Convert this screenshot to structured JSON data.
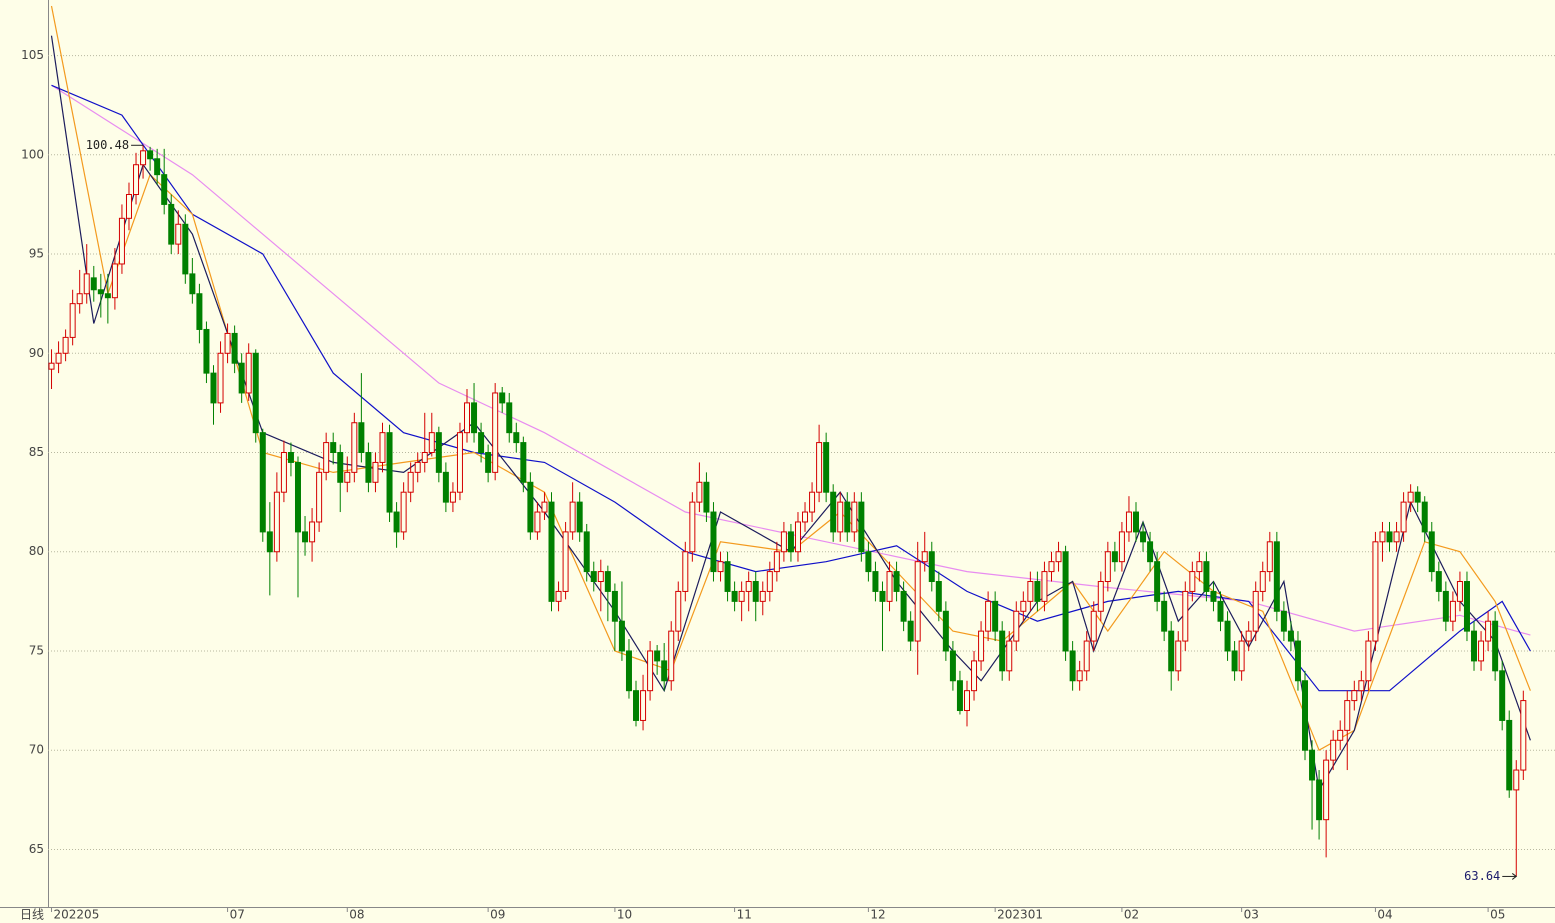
{
  "chart_data": {
    "type": "candlestick",
    "period_label": "日线",
    "up_color": "#d40000",
    "down_color": "#008000",
    "grid": true,
    "xlim": [
      -0.5,
      213.5
    ],
    "ylim": [
      62.1,
      107.8
    ],
    "yticks": [
      65,
      70,
      75,
      80,
      85,
      90,
      95,
      100,
      105
    ],
    "xticks": [
      {
        "value": 0,
        "label": "202205"
      },
      {
        "value": 25,
        "label": "07"
      },
      {
        "value": 42,
        "label": "08"
      },
      {
        "value": 62,
        "label": "09"
      },
      {
        "value": 80,
        "label": "10"
      },
      {
        "value": 97,
        "label": "11"
      },
      {
        "value": 116,
        "label": "12"
      },
      {
        "value": 134,
        "label": "202301"
      },
      {
        "value": 152,
        "label": "02"
      },
      {
        "value": 169,
        "label": "03"
      },
      {
        "value": 188,
        "label": "04"
      },
      {
        "value": 204,
        "label": "05"
      }
    ],
    "annotations": [
      {
        "text": 100.48,
        "index": 13
      },
      {
        "text": 63.64,
        "index": 208
      }
    ],
    "candles": [
      [
        89.2,
        90.2,
        88.2,
        89.5
      ],
      [
        89.5,
        90.6,
        89,
        90
      ],
      [
        90,
        91.2,
        89.6,
        90.8
      ],
      [
        90.8,
        93.2,
        90.4,
        92.5
      ],
      [
        92.5,
        94.2,
        92,
        93
      ],
      [
        93,
        95.5,
        92.5,
        94
      ],
      [
        93.8,
        94.4,
        92.6,
        93.2
      ],
      [
        93.2,
        94,
        91.8,
        93
      ],
      [
        93,
        94,
        91.5,
        92.8
      ],
      [
        92.8,
        95.3,
        92.2,
        94.5
      ],
      [
        94.5,
        97.5,
        94,
        96.8
      ],
      [
        96.8,
        98.6,
        96.2,
        98
      ],
      [
        98,
        100.1,
        97.5,
        99.5
      ],
      [
        99.5,
        100.48,
        98.8,
        100.2
      ],
      [
        100.2,
        100.4,
        99.2,
        99.8
      ],
      [
        99.8,
        100.3,
        98.5,
        99
      ],
      [
        99,
        100.3,
        97,
        97.5
      ],
      [
        97.5,
        98,
        95,
        95.5
      ],
      [
        95.5,
        97.2,
        95,
        96.5
      ],
      [
        96.5,
        97,
        93.5,
        94
      ],
      [
        94,
        94.8,
        92.5,
        93
      ],
      [
        93,
        93.5,
        90.5,
        91.2
      ],
      [
        91.2,
        91.6,
        88.5,
        89
      ],
      [
        89,
        89.4,
        86.4,
        87.5
      ],
      [
        87.5,
        90.6,
        87,
        90
      ],
      [
        90,
        91.5,
        89.5,
        91
      ],
      [
        91,
        91.4,
        89,
        89.5
      ],
      [
        89.5,
        90,
        87.5,
        88
      ],
      [
        88,
        90.5,
        87.6,
        90
      ],
      [
        90,
        90.2,
        85.5,
        86
      ],
      [
        86,
        86.2,
        80.5,
        81
      ],
      [
        81,
        82.5,
        77.8,
        80
      ],
      [
        80,
        84,
        79.5,
        83
      ],
      [
        83,
        85.6,
        82.5,
        85
      ],
      [
        85,
        85.5,
        83.8,
        84.5
      ],
      [
        84.5,
        84.8,
        77.7,
        81
      ],
      [
        81,
        81.8,
        79.8,
        80.5
      ],
      [
        80.5,
        82.2,
        79.5,
        81.5
      ],
      [
        81.5,
        84.5,
        81,
        84
      ],
      [
        84,
        86,
        83.6,
        85.5
      ],
      [
        85.5,
        86,
        84.4,
        85
      ],
      [
        85,
        85.4,
        82,
        83.5
      ],
      [
        83.5,
        84.8,
        83,
        84
      ],
      [
        84,
        87,
        83.5,
        86.5
      ],
      [
        86.5,
        89,
        84.5,
        85
      ],
      [
        85,
        85.5,
        83,
        83.5
      ],
      [
        83.5,
        85,
        83,
        84.5
      ],
      [
        84.5,
        86.5,
        84,
        86
      ],
      [
        86,
        86.4,
        81.5,
        82
      ],
      [
        82,
        82.5,
        80.2,
        81
      ],
      [
        81,
        83.5,
        80.6,
        83
      ],
      [
        83,
        84.5,
        82.5,
        84
      ],
      [
        84,
        85,
        83.5,
        84.5
      ],
      [
        84.5,
        87,
        84,
        85
      ],
      [
        85,
        87,
        84.8,
        86
      ],
      [
        86,
        86.3,
        83.5,
        84
      ],
      [
        84,
        84.5,
        82,
        82.5
      ],
      [
        82.5,
        83.5,
        82,
        83
      ],
      [
        83,
        86.5,
        82.6,
        86
      ],
      [
        86,
        88.2,
        85.5,
        87.5
      ],
      [
        87.5,
        88.5,
        85.5,
        86
      ],
      [
        86,
        86.5,
        84.5,
        85
      ],
      [
        85,
        85.4,
        83.5,
        84
      ],
      [
        84,
        88.5,
        83.6,
        88
      ],
      [
        88,
        88.3,
        87,
        87.5
      ],
      [
        87.5,
        88,
        85.5,
        86
      ],
      [
        86,
        86.5,
        85,
        85.5
      ],
      [
        85.5,
        85.8,
        83,
        83.5
      ],
      [
        83.5,
        84,
        80.6,
        81
      ],
      [
        81,
        82.5,
        80.6,
        82
      ],
      [
        82,
        83,
        81.6,
        82.5
      ],
      [
        82.5,
        83,
        77,
        77.5
      ],
      [
        77.5,
        78.5,
        77,
        78
      ],
      [
        78,
        81.5,
        77.6,
        81
      ],
      [
        81,
        83.5,
        80.6,
        82.5
      ],
      [
        82.5,
        83,
        80.5,
        81
      ],
      [
        81,
        81.4,
        78.5,
        79
      ],
      [
        79,
        79.5,
        78,
        78.5
      ],
      [
        78.5,
        79.6,
        77,
        79
      ],
      [
        79,
        79.3,
        76.5,
        78
      ],
      [
        78,
        78.4,
        75,
        76.5
      ],
      [
        76.5,
        78.5,
        74.5,
        75
      ],
      [
        75,
        75.6,
        72.6,
        73
      ],
      [
        73,
        73.5,
        71.2,
        71.5
      ],
      [
        71.5,
        73.8,
        71,
        73
      ],
      [
        73,
        75.5,
        72.5,
        75
      ],
      [
        75,
        75.3,
        73.8,
        74.5
      ],
      [
        74.5,
        75.4,
        73,
        73.5
      ],
      [
        73.5,
        76.5,
        73,
        76
      ],
      [
        76,
        78.5,
        75.5,
        78
      ],
      [
        78,
        80.5,
        77.5,
        80
      ],
      [
        80,
        83,
        79.5,
        82.5
      ],
      [
        82.5,
        84.5,
        82,
        83.5
      ],
      [
        83.5,
        84,
        81.5,
        82
      ],
      [
        82,
        82.5,
        78.5,
        79
      ],
      [
        79,
        80,
        78.5,
        79.5
      ],
      [
        79.5,
        80,
        77.5,
        78
      ],
      [
        78,
        78.5,
        77,
        77.5
      ],
      [
        77.5,
        78.5,
        76.5,
        78
      ],
      [
        78,
        79,
        77,
        78.5
      ],
      [
        78.5,
        79,
        76.5,
        77.5
      ],
      [
        77.5,
        78.5,
        76.8,
        78
      ],
      [
        78,
        79.5,
        77.5,
        79
      ],
      [
        79,
        80.5,
        78.5,
        80
      ],
      [
        80,
        81.5,
        79.5,
        81
      ],
      [
        81,
        81.4,
        79.5,
        80
      ],
      [
        80,
        82,
        79.5,
        81.5
      ],
      [
        81.5,
        82.5,
        81,
        82
      ],
      [
        82,
        83.5,
        81.5,
        83
      ],
      [
        83,
        86.4,
        82.5,
        85.5
      ],
      [
        85.5,
        86,
        82.5,
        83
      ],
      [
        83,
        83.4,
        80.5,
        81
      ],
      [
        81,
        83,
        80.5,
        82.5
      ],
      [
        82.5,
        83,
        80.5,
        81
      ],
      [
        81,
        83,
        80.5,
        82.5
      ],
      [
        82.5,
        83,
        79.5,
        80
      ],
      [
        80,
        80.5,
        78.5,
        79
      ],
      [
        79,
        79.5,
        77.5,
        78
      ],
      [
        78,
        78.5,
        75,
        77.5
      ],
      [
        77.5,
        79.5,
        77,
        79
      ],
      [
        79,
        79.5,
        77.5,
        78
      ],
      [
        78,
        78.5,
        76,
        76.5
      ],
      [
        76.5,
        77,
        75,
        75.5
      ],
      [
        75.5,
        80.5,
        73.8,
        79.5
      ],
      [
        79.5,
        81,
        79,
        80
      ],
      [
        80,
        80.5,
        78,
        78.5
      ],
      [
        78.5,
        79,
        76.5,
        77
      ],
      [
        77,
        77.5,
        74.5,
        75
      ],
      [
        75,
        75.5,
        73,
        73.5
      ],
      [
        73.5,
        74,
        71.8,
        72
      ],
      [
        72,
        73.5,
        71.2,
        73
      ],
      [
        73,
        75,
        72.5,
        74.5
      ],
      [
        74.5,
        76.5,
        74,
        76
      ],
      [
        76,
        78,
        75.5,
        77.5
      ],
      [
        77.5,
        78,
        75.5,
        76
      ],
      [
        76,
        76.5,
        73.5,
        74
      ],
      [
        74,
        76,
        73.5,
        75.5
      ],
      [
        75.5,
        77.5,
        75,
        77
      ],
      [
        77,
        78,
        76.5,
        77.5
      ],
      [
        77.5,
        79,
        77,
        78.5
      ],
      [
        78.5,
        79,
        77,
        77.5
      ],
      [
        77.5,
        79.5,
        77,
        79
      ],
      [
        79,
        80,
        78.5,
        79.5
      ],
      [
        79.5,
        80.5,
        79,
        80
      ],
      [
        80,
        80.3,
        74.5,
        75
      ],
      [
        75,
        75.5,
        73,
        73.5
      ],
      [
        73.5,
        74.5,
        73,
        74
      ],
      [
        74,
        76,
        73.5,
        75.5
      ],
      [
        75.5,
        77.5,
        75,
        77
      ],
      [
        77,
        79,
        76.5,
        78.5
      ],
      [
        78.5,
        80.5,
        78,
        80
      ],
      [
        80,
        80.5,
        79,
        79.5
      ],
      [
        79.5,
        81.5,
        79,
        81
      ],
      [
        81,
        82.8,
        80.5,
        82
      ],
      [
        82,
        82.5,
        80.5,
        81
      ],
      [
        81,
        81.5,
        80,
        80.5
      ],
      [
        80.5,
        81,
        79,
        79.5
      ],
      [
        79.5,
        80,
        77,
        77.5
      ],
      [
        77.5,
        78,
        75.5,
        76
      ],
      [
        76,
        76.5,
        73,
        74
      ],
      [
        74,
        76,
        73.5,
        75.5
      ],
      [
        75.5,
        78.5,
        75,
        78
      ],
      [
        78,
        79.5,
        77.5,
        79
      ],
      [
        79,
        80,
        78.5,
        79.5
      ],
      [
        79.5,
        80,
        77.5,
        78
      ],
      [
        78,
        78.5,
        77,
        77.5
      ],
      [
        77.5,
        78,
        76,
        76.5
      ],
      [
        76.5,
        77,
        74.5,
        75
      ],
      [
        75,
        75.5,
        73.5,
        74
      ],
      [
        74,
        76,
        73.5,
        75.5
      ],
      [
        75.5,
        76.5,
        75,
        76
      ],
      [
        76,
        78.5,
        75.5,
        78
      ],
      [
        78,
        79.5,
        77.5,
        79
      ],
      [
        79,
        81,
        78.5,
        80.5
      ],
      [
        80.5,
        81,
        76.5,
        77
      ],
      [
        77,
        77.5,
        75.5,
        76
      ],
      [
        76,
        76.5,
        75,
        75.5
      ],
      [
        75.5,
        76,
        73,
        73.5
      ],
      [
        73.5,
        74,
        69.5,
        70
      ],
      [
        70,
        70.5,
        66,
        68.5
      ],
      [
        68.5,
        69,
        65.5,
        66.5
      ],
      [
        66.5,
        70,
        64.6,
        69.5
      ],
      [
        69.5,
        71,
        69,
        70.5
      ],
      [
        70.5,
        71.5,
        70,
        71
      ],
      [
        71,
        73,
        69,
        72.5
      ],
      [
        72.5,
        73.5,
        72,
        73
      ],
      [
        73,
        74,
        72.5,
        73.5
      ],
      [
        73.5,
        76,
        73,
        75.5
      ],
      [
        75.5,
        81,
        75,
        80.5
      ],
      [
        80.5,
        81.5,
        79.5,
        81
      ],
      [
        81,
        81.5,
        80,
        80.5
      ],
      [
        80.5,
        81.5,
        80,
        81
      ],
      [
        81,
        83,
        80.5,
        82.5
      ],
      [
        82.5,
        83.4,
        82,
        83
      ],
      [
        83,
        83.3,
        82,
        82.5
      ],
      [
        82.5,
        82.8,
        80.5,
        81
      ],
      [
        81,
        81.5,
        78.5,
        79
      ],
      [
        79,
        79.5,
        77.5,
        78
      ],
      [
        78,
        78.5,
        76,
        76.5
      ],
      [
        76.5,
        78,
        76,
        77.5
      ],
      [
        77.5,
        79,
        77,
        78.5
      ],
      [
        78.5,
        79,
        75.5,
        76
      ],
      [
        76,
        76.5,
        74,
        74.5
      ],
      [
        74.5,
        76,
        74,
        75.5
      ],
      [
        75.5,
        77,
        75,
        76.5
      ],
      [
        76.5,
        77,
        73.5,
        74
      ],
      [
        74,
        74.5,
        71,
        71.5
      ],
      [
        71.5,
        72,
        67.6,
        68
      ],
      [
        68,
        69.5,
        63.64,
        69
      ],
      [
        69,
        73,
        68.5,
        72.5
      ]
    ],
    "ma_lines": [
      {
        "color": "#e88cf0",
        "x": [
          0,
          20,
          40,
          55,
          70,
          90,
          110,
          130,
          150,
          170,
          185,
          200,
          210
        ],
        "values": [
          103.5,
          99,
          93,
          88.5,
          86,
          82,
          80.5,
          79,
          78.2,
          77.5,
          76,
          76.8,
          75.8
        ]
      },
      {
        "color": "#1010c8",
        "x": [
          0,
          10,
          20,
          30,
          40,
          50,
          60,
          70,
          80,
          90,
          100,
          110,
          120,
          130,
          140,
          150,
          160,
          170,
          180,
          190,
          200,
          206,
          210
        ],
        "values": [
          103.5,
          102,
          97,
          95,
          89,
          86,
          85,
          84.5,
          82.5,
          80,
          79,
          79.5,
          80.3,
          78,
          76.5,
          77.5,
          78,
          77.5,
          73,
          73,
          76,
          77.5,
          75
        ]
      },
      {
        "color": "#f39a1e",
        "x": [
          0,
          8,
          14,
          20,
          30,
          40,
          50,
          60,
          70,
          80,
          88,
          95,
          105,
          112,
          120,
          128,
          135,
          145,
          150,
          158,
          165,
          172,
          180,
          185,
          195,
          200,
          205,
          210
        ],
        "values": [
          107.5,
          93,
          99,
          97,
          85,
          84,
          84.5,
          85,
          83,
          75,
          74,
          80.5,
          80,
          82,
          79,
          76,
          75.5,
          78.5,
          76,
          80,
          78,
          77,
          70,
          71,
          80.5,
          80,
          77.5,
          73
        ]
      },
      {
        "color": "#1c1c5c",
        "x": [
          0,
          6,
          13,
          20,
          30,
          40,
          50,
          60,
          70,
          80,
          87,
          95,
          105,
          112,
          120,
          128,
          132,
          140,
          145,
          148,
          155,
          160,
          165,
          170,
          175,
          180,
          185,
          193,
          200,
          205,
          210
        ],
        "values": [
          106,
          91.5,
          99.5,
          96,
          86,
          84.5,
          84,
          86.5,
          82,
          77,
          73,
          82,
          80,
          83,
          78.5,
          75,
          73.5,
          77.5,
          78.5,
          75,
          81.5,
          76.5,
          78.5,
          75.2,
          78.5,
          68,
          71,
          82.5,
          77.5,
          75.5,
          70.5
        ]
      }
    ]
  }
}
